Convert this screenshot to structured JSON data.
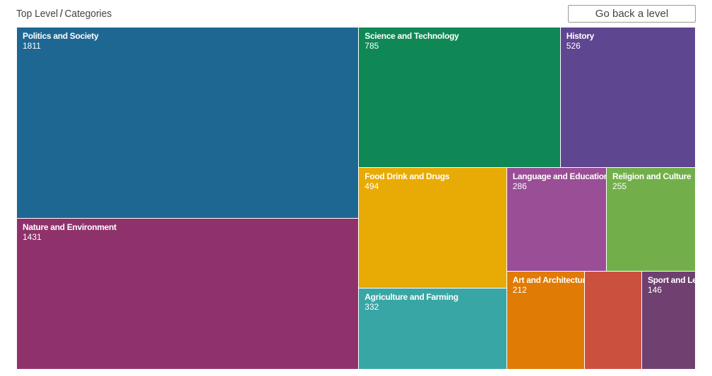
{
  "breadcrumb": {
    "root": "Top Level",
    "separator": "/",
    "current": "Categories"
  },
  "back_button": {
    "label": "Go back a level"
  },
  "chart_data": {
    "type": "treemap",
    "title": "",
    "items": [
      {
        "label": "Politics and Society",
        "value": 1811,
        "show_value": true,
        "color": "#1e6793"
      },
      {
        "label": "Nature and Environment",
        "value": 1431,
        "show_value": true,
        "color": "#8f326c"
      },
      {
        "label": "Science and Technology",
        "value": 785,
        "show_value": true,
        "color": "#108856"
      },
      {
        "label": "History",
        "value": 526,
        "show_value": true,
        "color": "#5f4690"
      },
      {
        "label": "Food Drink and Drugs",
        "value": 494,
        "show_value": true,
        "color": "#e8ab06"
      },
      {
        "label": "Agriculture and Farming",
        "value": 332,
        "show_value": true,
        "color": "#38a6a5"
      },
      {
        "label": "Language and Education",
        "value": 286,
        "show_value": true,
        "color": "#994e95"
      },
      {
        "label": "Religion and Culture",
        "value": 255,
        "show_value": true,
        "color": "#72af4a"
      },
      {
        "label": "Art and Architecture",
        "value": 212,
        "show_value": true,
        "color": "#e07b05"
      },
      {
        "label": "",
        "value": 155,
        "show_value": false,
        "color": "#cc503e"
      },
      {
        "label": "Sport and Leis",
        "value": 146,
        "show_value": true,
        "color": "#6f4070"
      }
    ]
  }
}
